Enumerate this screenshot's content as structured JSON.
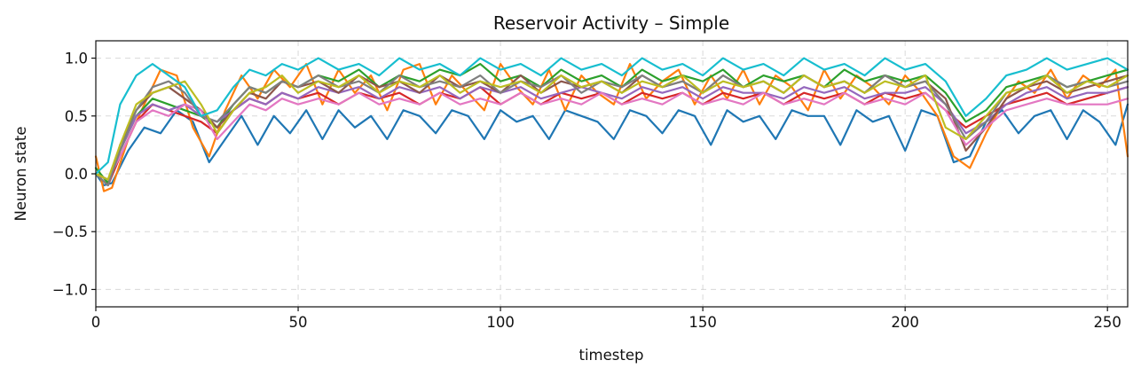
{
  "chart_data": {
    "type": "line",
    "title": "Reservoir Activity – Simple",
    "xlabel": "timestep",
    "ylabel": "Neuron state",
    "xlim": [
      0,
      255
    ],
    "ylim": [
      -1.15,
      1.15
    ],
    "xticks": [
      0,
      50,
      100,
      150,
      200,
      250
    ],
    "yticks": [
      -1.0,
      -0.5,
      0.0,
      0.5,
      1.0
    ],
    "ytick_labels": [
      "−1.0",
      "−0.5",
      "0.0",
      "0.5",
      "1.0"
    ],
    "grid": true,
    "legend": "none",
    "colors": [
      "#1f77b4",
      "#ff7f0e",
      "#2ca02c",
      "#d62728",
      "#9467bd",
      "#8c564b",
      "#e377c2",
      "#7f7f7f",
      "#bcbd22",
      "#17becf"
    ],
    "series": [
      {
        "x": [
          0,
          2,
          4,
          8,
          12,
          16,
          20,
          24,
          28,
          32,
          36,
          40,
          44,
          48,
          52,
          56,
          60,
          64,
          68,
          72,
          76,
          80,
          84,
          88,
          92,
          96,
          100,
          104,
          108,
          112,
          116,
          120,
          124,
          128,
          132,
          136,
          140,
          144,
          148,
          152,
          156,
          160,
          164,
          168,
          172,
          176,
          180,
          184,
          188,
          192,
          196,
          200,
          204,
          208,
          212,
          216,
          220,
          224,
          228,
          232,
          236,
          240,
          244,
          248,
          252,
          255
        ],
        "values": [
          0.0,
          -0.1,
          -0.08,
          0.2,
          0.4,
          0.35,
          0.55,
          0.45,
          0.1,
          0.3,
          0.5,
          0.25,
          0.5,
          0.35,
          0.55,
          0.3,
          0.55,
          0.4,
          0.5,
          0.3,
          0.55,
          0.5,
          0.35,
          0.55,
          0.5,
          0.3,
          0.55,
          0.45,
          0.5,
          0.3,
          0.55,
          0.5,
          0.45,
          0.3,
          0.55,
          0.5,
          0.35,
          0.55,
          0.5,
          0.25,
          0.55,
          0.45,
          0.5,
          0.3,
          0.55,
          0.5,
          0.5,
          0.25,
          0.55,
          0.45,
          0.5,
          0.2,
          0.55,
          0.5,
          0.1,
          0.15,
          0.45,
          0.55,
          0.35,
          0.5,
          0.55,
          0.3,
          0.55,
          0.45,
          0.25,
          0.6
        ]
      },
      {
        "x": [
          0,
          2,
          4,
          8,
          12,
          16,
          20,
          24,
          28,
          32,
          36,
          40,
          44,
          48,
          52,
          56,
          60,
          64,
          68,
          72,
          76,
          80,
          84,
          88,
          92,
          96,
          100,
          104,
          108,
          112,
          116,
          120,
          124,
          128,
          132,
          136,
          140,
          144,
          148,
          152,
          156,
          160,
          164,
          168,
          172,
          176,
          180,
          184,
          188,
          192,
          196,
          200,
          204,
          208,
          212,
          216,
          220,
          224,
          228,
          232,
          236,
          240,
          244,
          248,
          252,
          255
        ],
        "values": [
          0.15,
          -0.15,
          -0.12,
          0.3,
          0.6,
          0.9,
          0.85,
          0.4,
          0.15,
          0.55,
          0.85,
          0.65,
          0.9,
          0.75,
          0.95,
          0.6,
          0.9,
          0.7,
          0.85,
          0.55,
          0.9,
          0.95,
          0.6,
          0.85,
          0.7,
          0.55,
          0.95,
          0.75,
          0.6,
          0.9,
          0.55,
          0.85,
          0.7,
          0.6,
          0.95,
          0.65,
          0.8,
          0.9,
          0.6,
          0.85,
          0.65,
          0.9,
          0.6,
          0.85,
          0.75,
          0.55,
          0.9,
          0.65,
          0.85,
          0.75,
          0.6,
          0.85,
          0.7,
          0.5,
          0.15,
          0.05,
          0.35,
          0.6,
          0.8,
          0.7,
          0.9,
          0.65,
          0.85,
          0.75,
          0.9,
          0.15
        ]
      },
      {
        "x": [
          0,
          3,
          6,
          10,
          14,
          18,
          22,
          26,
          30,
          34,
          38,
          42,
          46,
          50,
          55,
          60,
          65,
          70,
          75,
          80,
          85,
          90,
          95,
          100,
          105,
          110,
          115,
          120,
          125,
          130,
          135,
          140,
          145,
          150,
          155,
          160,
          165,
          170,
          175,
          180,
          185,
          190,
          195,
          200,
          205,
          210,
          215,
          220,
          225,
          230,
          235,
          240,
          245,
          250,
          255
        ],
        "values": [
          0.05,
          -0.08,
          0.2,
          0.5,
          0.65,
          0.6,
          0.55,
          0.5,
          0.4,
          0.6,
          0.75,
          0.7,
          0.8,
          0.75,
          0.85,
          0.8,
          0.9,
          0.75,
          0.85,
          0.8,
          0.9,
          0.85,
          0.95,
          0.8,
          0.85,
          0.75,
          0.9,
          0.8,
          0.85,
          0.75,
          0.9,
          0.8,
          0.85,
          0.8,
          0.9,
          0.75,
          0.85,
          0.8,
          0.85,
          0.75,
          0.9,
          0.8,
          0.85,
          0.8,
          0.85,
          0.7,
          0.45,
          0.55,
          0.75,
          0.8,
          0.85,
          0.75,
          0.8,
          0.85,
          0.9
        ]
      },
      {
        "x": [
          0,
          3,
          6,
          10,
          14,
          18,
          22,
          26,
          30,
          34,
          38,
          42,
          46,
          50,
          55,
          60,
          65,
          70,
          75,
          80,
          85,
          90,
          95,
          100,
          105,
          110,
          115,
          120,
          125,
          130,
          135,
          140,
          145,
          150,
          155,
          160,
          165,
          170,
          175,
          180,
          185,
          190,
          195,
          200,
          205,
          210,
          215,
          220,
          225,
          230,
          235,
          240,
          245,
          250,
          255
        ],
        "values": [
          0.0,
          -0.1,
          0.15,
          0.45,
          0.6,
          0.55,
          0.5,
          0.45,
          0.35,
          0.55,
          0.65,
          0.6,
          0.7,
          0.65,
          0.7,
          0.6,
          0.7,
          0.65,
          0.7,
          0.6,
          0.7,
          0.65,
          0.75,
          0.6,
          0.7,
          0.6,
          0.7,
          0.65,
          0.7,
          0.6,
          0.7,
          0.65,
          0.7,
          0.6,
          0.7,
          0.65,
          0.7,
          0.6,
          0.7,
          0.65,
          0.7,
          0.6,
          0.7,
          0.65,
          0.7,
          0.55,
          0.4,
          0.5,
          0.6,
          0.65,
          0.7,
          0.6,
          0.65,
          0.7,
          0.75
        ]
      },
      {
        "x": [
          0,
          3,
          6,
          10,
          14,
          18,
          22,
          26,
          30,
          34,
          38,
          42,
          46,
          50,
          55,
          60,
          65,
          70,
          75,
          80,
          85,
          90,
          95,
          100,
          105,
          110,
          115,
          120,
          125,
          130,
          135,
          140,
          145,
          150,
          155,
          160,
          165,
          170,
          175,
          180,
          185,
          190,
          195,
          200,
          205,
          210,
          215,
          220,
          225,
          230,
          235,
          240,
          245,
          250,
          255
        ],
        "values": [
          0.0,
          -0.05,
          0.2,
          0.5,
          0.6,
          0.55,
          0.6,
          0.5,
          0.45,
          0.55,
          0.65,
          0.6,
          0.7,
          0.65,
          0.75,
          0.7,
          0.75,
          0.65,
          0.75,
          0.7,
          0.75,
          0.65,
          0.75,
          0.7,
          0.75,
          0.65,
          0.7,
          0.75,
          0.7,
          0.65,
          0.75,
          0.7,
          0.75,
          0.65,
          0.75,
          0.7,
          0.7,
          0.65,
          0.75,
          0.7,
          0.75,
          0.65,
          0.7,
          0.7,
          0.75,
          0.6,
          0.35,
          0.45,
          0.6,
          0.7,
          0.75,
          0.65,
          0.7,
          0.7,
          0.75
        ]
      },
      {
        "x": [
          0,
          3,
          6,
          10,
          14,
          18,
          22,
          26,
          30,
          34,
          38,
          42,
          46,
          50,
          55,
          60,
          65,
          70,
          75,
          80,
          85,
          90,
          95,
          100,
          105,
          110,
          115,
          120,
          125,
          130,
          135,
          140,
          145,
          150,
          155,
          160,
          165,
          170,
          175,
          180,
          185,
          190,
          195,
          200,
          205,
          210,
          215,
          220,
          225,
          230,
          235,
          240,
          245,
          250,
          255
        ],
        "values": [
          0.0,
          -0.1,
          0.25,
          0.55,
          0.7,
          0.75,
          0.65,
          0.55,
          0.4,
          0.55,
          0.7,
          0.65,
          0.8,
          0.75,
          0.8,
          0.7,
          0.85,
          0.75,
          0.8,
          0.7,
          0.85,
          0.75,
          0.8,
          0.7,
          0.85,
          0.7,
          0.8,
          0.75,
          0.8,
          0.7,
          0.85,
          0.75,
          0.8,
          0.7,
          0.85,
          0.75,
          0.8,
          0.7,
          0.85,
          0.75,
          0.8,
          0.7,
          0.85,
          0.75,
          0.8,
          0.65,
          0.2,
          0.4,
          0.65,
          0.75,
          0.8,
          0.7,
          0.75,
          0.8,
          0.85
        ]
      },
      {
        "x": [
          0,
          3,
          6,
          10,
          14,
          18,
          22,
          26,
          30,
          34,
          38,
          42,
          46,
          50,
          55,
          60,
          65,
          70,
          75,
          80,
          85,
          90,
          95,
          100,
          105,
          110,
          115,
          120,
          125,
          130,
          135,
          140,
          145,
          150,
          155,
          160,
          165,
          170,
          175,
          180,
          185,
          190,
          195,
          200,
          205,
          210,
          215,
          220,
          225,
          230,
          235,
          240,
          245,
          250,
          255
        ],
        "values": [
          0.0,
          -0.05,
          0.15,
          0.45,
          0.55,
          0.5,
          0.6,
          0.55,
          0.3,
          0.45,
          0.6,
          0.55,
          0.65,
          0.6,
          0.65,
          0.6,
          0.7,
          0.6,
          0.65,
          0.6,
          0.7,
          0.6,
          0.65,
          0.6,
          0.7,
          0.6,
          0.65,
          0.6,
          0.7,
          0.6,
          0.65,
          0.6,
          0.7,
          0.6,
          0.65,
          0.6,
          0.7,
          0.6,
          0.65,
          0.6,
          0.7,
          0.6,
          0.65,
          0.6,
          0.7,
          0.55,
          0.25,
          0.4,
          0.55,
          0.6,
          0.65,
          0.6,
          0.6,
          0.6,
          0.65
        ]
      },
      {
        "x": [
          0,
          3,
          6,
          10,
          14,
          18,
          22,
          26,
          30,
          34,
          38,
          42,
          46,
          50,
          55,
          60,
          65,
          70,
          75,
          80,
          85,
          90,
          95,
          100,
          105,
          110,
          115,
          120,
          125,
          130,
          135,
          140,
          145,
          150,
          155,
          160,
          165,
          170,
          175,
          180,
          185,
          190,
          195,
          200,
          205,
          210,
          215,
          220,
          225,
          230,
          235,
          240,
          245,
          250,
          255
        ],
        "values": [
          0.0,
          -0.1,
          0.2,
          0.55,
          0.75,
          0.8,
          0.7,
          0.5,
          0.45,
          0.6,
          0.75,
          0.7,
          0.8,
          0.75,
          0.85,
          0.75,
          0.8,
          0.7,
          0.85,
          0.75,
          0.8,
          0.75,
          0.85,
          0.7,
          0.8,
          0.75,
          0.85,
          0.7,
          0.8,
          0.75,
          0.85,
          0.75,
          0.8,
          0.7,
          0.85,
          0.75,
          0.8,
          0.7,
          0.85,
          0.75,
          0.8,
          0.7,
          0.85,
          0.75,
          0.8,
          0.6,
          0.3,
          0.45,
          0.7,
          0.75,
          0.85,
          0.75,
          0.8,
          0.75,
          0.8
        ]
      },
      {
        "x": [
          0,
          3,
          6,
          10,
          14,
          18,
          22,
          26,
          30,
          34,
          38,
          42,
          46,
          50,
          55,
          60,
          65,
          70,
          75,
          80,
          85,
          90,
          95,
          100,
          105,
          110,
          115,
          120,
          125,
          130,
          135,
          140,
          145,
          150,
          155,
          160,
          165,
          170,
          175,
          180,
          185,
          190,
          195,
          200,
          205,
          210,
          215,
          220,
          225,
          230,
          235,
          240,
          245,
          250,
          255
        ],
        "values": [
          0.0,
          -0.05,
          0.25,
          0.6,
          0.7,
          0.75,
          0.8,
          0.6,
          0.35,
          0.55,
          0.7,
          0.75,
          0.85,
          0.7,
          0.8,
          0.75,
          0.85,
          0.7,
          0.8,
          0.75,
          0.85,
          0.7,
          0.8,
          0.75,
          0.8,
          0.7,
          0.85,
          0.75,
          0.8,
          0.7,
          0.8,
          0.75,
          0.85,
          0.7,
          0.8,
          0.75,
          0.8,
          0.7,
          0.85,
          0.75,
          0.8,
          0.7,
          0.8,
          0.75,
          0.85,
          0.4,
          0.3,
          0.5,
          0.7,
          0.75,
          0.85,
          0.7,
          0.8,
          0.75,
          0.85
        ]
      },
      {
        "x": [
          0,
          3,
          6,
          10,
          14,
          18,
          22,
          26,
          30,
          34,
          38,
          42,
          46,
          50,
          55,
          60,
          65,
          70,
          75,
          80,
          85,
          90,
          95,
          100,
          105,
          110,
          115,
          120,
          125,
          130,
          135,
          140,
          145,
          150,
          155,
          160,
          165,
          170,
          175,
          180,
          185,
          190,
          195,
          200,
          205,
          210,
          215,
          220,
          225,
          230,
          235,
          240,
          245,
          250,
          255
        ],
        "values": [
          0.0,
          0.1,
          0.6,
          0.85,
          0.95,
          0.85,
          0.75,
          0.5,
          0.55,
          0.75,
          0.9,
          0.85,
          0.95,
          0.9,
          1.0,
          0.9,
          0.95,
          0.85,
          1.0,
          0.9,
          0.95,
          0.85,
          1.0,
          0.9,
          0.95,
          0.85,
          1.0,
          0.9,
          0.95,
          0.85,
          1.0,
          0.9,
          0.95,
          0.85,
          1.0,
          0.9,
          0.95,
          0.85,
          1.0,
          0.9,
          0.95,
          0.85,
          1.0,
          0.9,
          0.95,
          0.8,
          0.5,
          0.65,
          0.85,
          0.9,
          1.0,
          0.9,
          0.95,
          1.0,
          0.9
        ]
      }
    ]
  }
}
